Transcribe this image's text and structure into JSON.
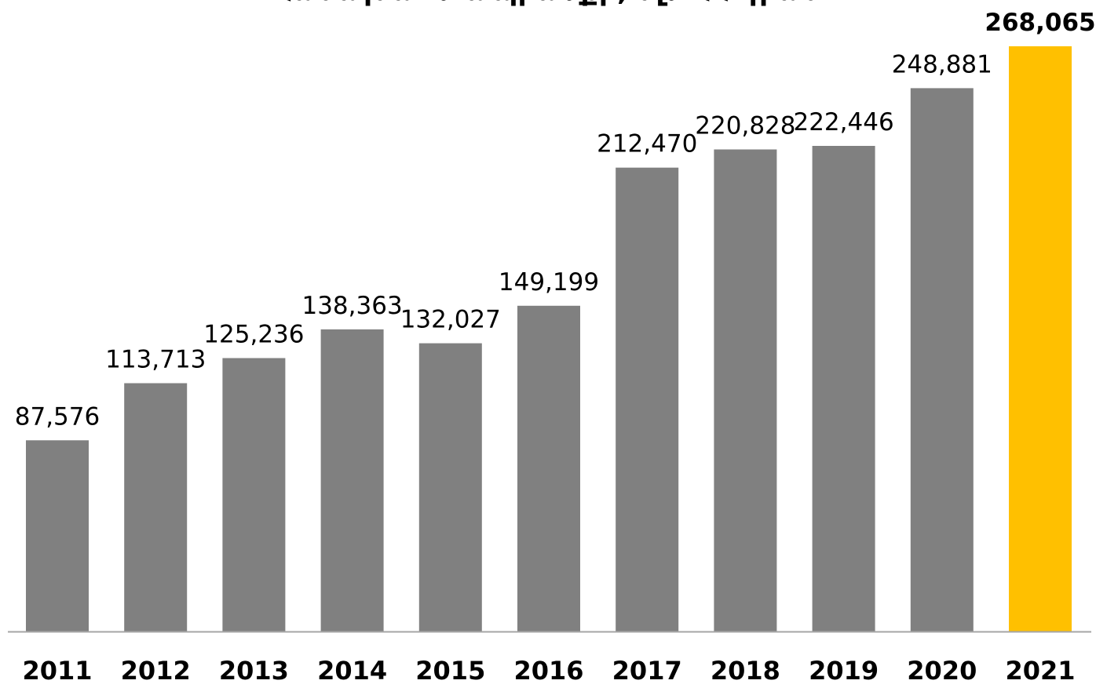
{
  "chart_data": {
    "type": "bar",
    "title": "Համախառն ապրանքի, մլն ՀՀ դրամ",
    "categories": [
      "2011",
      "2012",
      "2013",
      "2014",
      "2015",
      "2016",
      "2017",
      "2018",
      "2019",
      "2020",
      "2021"
    ],
    "values": [
      87576,
      113713,
      125236,
      138363,
      132027,
      149199,
      212470,
      220828,
      222446,
      248881,
      268065
    ],
    "value_labels": [
      "87,576",
      "113,713",
      "125,236",
      "138,363",
      "132,027",
      "149,199",
      "212,470",
      "220,828",
      "222,446",
      "248,881",
      "268,065"
    ],
    "highlight_index": 10,
    "colors": {
      "bar": "#808080",
      "highlight": "#FFC000",
      "axis": "#A6A6A6",
      "text": "#000000"
    },
    "ylim": [
      0,
      268065
    ],
    "xlabel": "",
    "ylabel": "",
    "grid": false,
    "legend": "none"
  }
}
